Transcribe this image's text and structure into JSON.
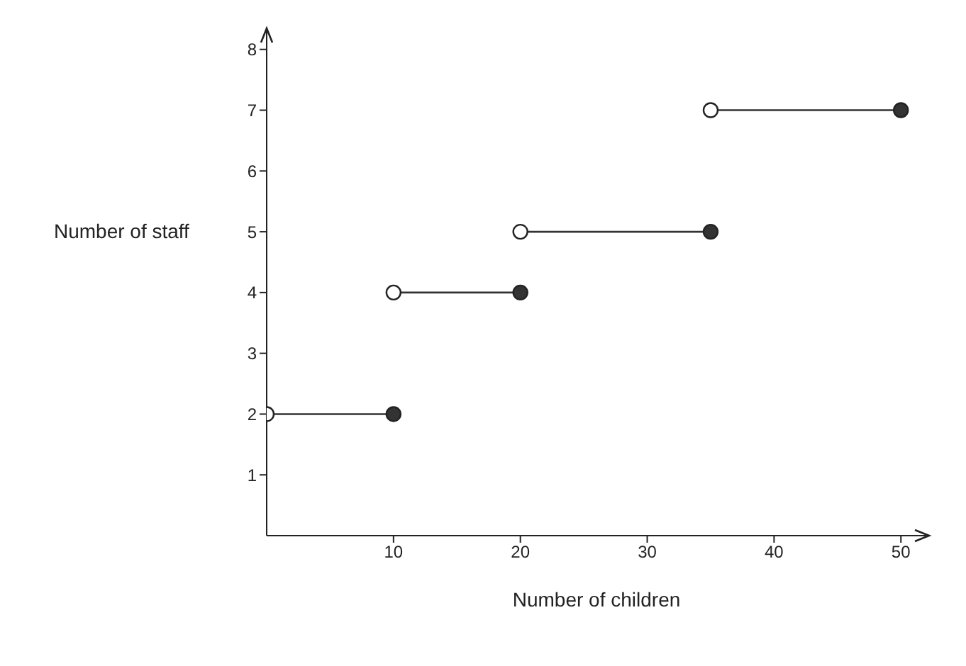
{
  "chart_data": {
    "type": "line",
    "xlabel": "Number of children",
    "ylabel": "Number of staff",
    "xlim": [
      0,
      52
    ],
    "xticks": [
      10,
      20,
      30,
      40,
      50
    ],
    "ylim": [
      0,
      8.3
    ],
    "yticks": [
      1,
      2,
      3,
      4,
      5,
      6,
      7,
      8
    ],
    "grid": false,
    "series": [
      {
        "color": "#333333",
        "marker": "none",
        "x": [
          0,
          10
        ],
        "values": [
          2,
          2
        ]
      },
      {
        "color": "#333333",
        "marker": "none",
        "x": [
          10,
          20
        ],
        "values": [
          4,
          4
        ]
      },
      {
        "color": "#333333",
        "marker": "none",
        "x": [
          20,
          35
        ],
        "values": [
          5,
          5
        ]
      },
      {
        "color": "#333333",
        "marker": "none",
        "x": [
          35,
          50
        ],
        "values": [
          7,
          7
        ]
      },
      {
        "type": "scatter",
        "color": "#ffffff",
        "marker": "circle",
        "x": [
          0,
          10,
          20,
          35
        ],
        "values": [
          2,
          4,
          5,
          7
        ]
      },
      {
        "type": "scatter",
        "color": "#333333",
        "marker": "circle",
        "x": [
          10,
          20,
          35,
          50
        ],
        "values": [
          2,
          4,
          5,
          7
        ]
      }
    ]
  }
}
